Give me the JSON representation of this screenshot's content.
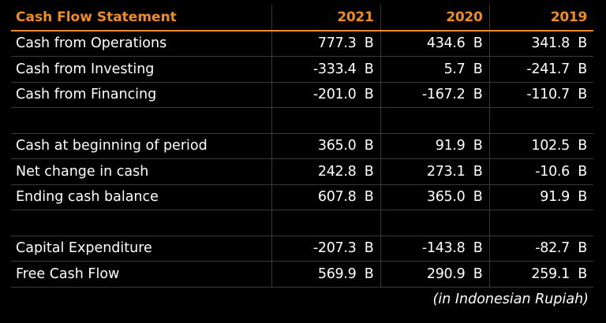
{
  "table": {
    "title": "Cash Flow Statement",
    "years": [
      "2021",
      "2020",
      "2019"
    ],
    "unit": "B",
    "groups": [
      [
        {
          "label": "Cash from Operations",
          "values": [
            "777.3",
            "434.6",
            "341.8"
          ]
        },
        {
          "label": "Cash from Investing",
          "values": [
            "-333.4",
            "5.7",
            "-241.7"
          ]
        },
        {
          "label": "Cash from Financing",
          "values": [
            "-201.0",
            "-167.2",
            "-110.7"
          ]
        }
      ],
      [
        {
          "label": "Cash at beginning of period",
          "values": [
            "365.0",
            "91.9",
            "102.5"
          ]
        },
        {
          "label": "Net change in cash",
          "values": [
            "242.8",
            "273.1",
            "-10.6"
          ]
        },
        {
          "label": "Ending cash balance",
          "values": [
            "607.8",
            "365.0",
            "91.9"
          ]
        }
      ],
      [
        {
          "label": "Capital Expenditure",
          "values": [
            "-207.3",
            "-143.8",
            "-82.7"
          ]
        },
        {
          "label": "Free Cash Flow",
          "values": [
            "569.9",
            "290.9",
            "259.1"
          ]
        }
      ]
    ],
    "note": "(in Indonesian Rupiah)"
  },
  "colors": {
    "background": "#000000",
    "header_accent": "#f28c1c",
    "text": "#ffffff",
    "grid": "#3a3a3a"
  }
}
